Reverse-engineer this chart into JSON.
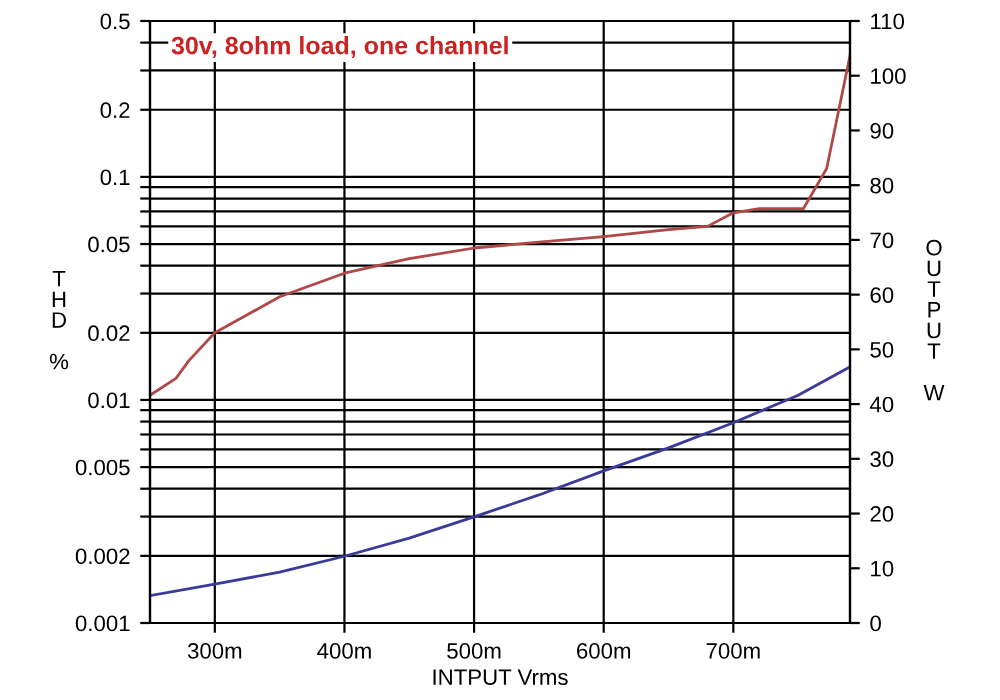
{
  "chart_data": {
    "type": "line",
    "title": "30v, 8ohm load, one channel",
    "xlabel": "INTPUT Vrms",
    "ylabel": "THD %",
    "y2label": "OUTPUT W",
    "log": "y",
    "grid": true,
    "marker": "none",
    "line_style": "solid",
    "xlim": [
      250,
      790
    ],
    "xticks": [
      {
        "value": 300,
        "label": "300m"
      },
      {
        "value": 400,
        "label": "400m"
      },
      {
        "value": 500,
        "label": "500m"
      },
      {
        "value": 600,
        "label": "600m"
      },
      {
        "value": 700,
        "label": "700m"
      }
    ],
    "ylim": [
      0.001,
      0.5
    ],
    "yticks": [
      0.001,
      0.002,
      {
        "value": 0.003,
        "label": null
      },
      {
        "value": 0.004,
        "label": null
      },
      0.005,
      {
        "value": 0.006,
        "label": null
      },
      {
        "value": 0.007,
        "label": null
      },
      {
        "value": 0.008,
        "label": null
      },
      {
        "value": 0.009,
        "label": null
      },
      0.01,
      0.02,
      {
        "value": 0.03,
        "label": null
      },
      {
        "value": 0.04,
        "label": null
      },
      0.05,
      {
        "value": 0.06,
        "label": null
      },
      {
        "value": 0.07,
        "label": null
      },
      {
        "value": 0.08,
        "label": null
      },
      {
        "value": 0.09,
        "label": null
      },
      0.1,
      0.2,
      {
        "value": 0.3,
        "label": null
      },
      {
        "value": 0.4,
        "label": null
      },
      0.5
    ],
    "y2lim": [
      0,
      110
    ],
    "y2ticks": [
      0,
      10,
      20,
      30,
      40,
      50,
      60,
      70,
      80,
      90,
      100,
      110
    ],
    "series": [
      {
        "color": "#b04848",
        "x": [
          250,
          270,
          280,
          300,
          350,
          400,
          450,
          500,
          550,
          600,
          650,
          680,
          700,
          720,
          754,
          772,
          790
        ],
        "values": [
          0.0105,
          0.0125,
          0.015,
          0.02,
          0.029,
          0.037,
          0.043,
          0.048,
          0.051,
          0.054,
          0.058,
          0.06,
          0.069,
          0.072,
          0.072,
          0.109,
          0.35
        ]
      },
      {
        "color": "#3a3a9a",
        "axis": "y2",
        "x": [
          250,
          300,
          350,
          400,
          450,
          500,
          550,
          600,
          650,
          700,
          750,
          790
        ],
        "values": [
          5.0,
          7.1,
          9.3,
          12.2,
          15.5,
          19.4,
          23.4,
          27.8,
          32.0,
          36.6,
          41.6,
          46.8
        ]
      }
    ]
  }
}
